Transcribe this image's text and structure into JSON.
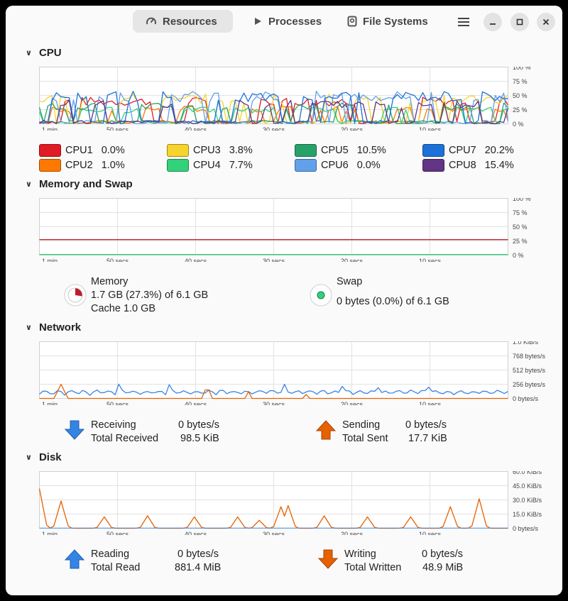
{
  "header": {
    "tabs": [
      {
        "label": "Resources",
        "icon": "gauge-icon",
        "active": true
      },
      {
        "label": "Processes",
        "icon": "play-icon",
        "active": false
      },
      {
        "label": "File Systems",
        "icon": "drive-icon",
        "active": false
      }
    ],
    "menu_icon": "hamburger-icon",
    "minimize_icon": "minimize-icon",
    "maximize_icon": "maximize-icon",
    "close_icon": "close-icon"
  },
  "time_labels": [
    "1 min",
    "50 secs",
    "40 secs",
    "30 secs",
    "20 secs",
    "10 secs"
  ],
  "cpu": {
    "title": "CPU",
    "y_ticks": [
      "100 %",
      "75 %",
      "50 %",
      "25 %",
      "0 %"
    ],
    "cores": [
      {
        "label": "CPU1",
        "value": "0.0%",
        "color": "#e01b24"
      },
      {
        "label": "CPU2",
        "value": "1.0%",
        "color": "#ff7800"
      },
      {
        "label": "CPU3",
        "value": "3.8%",
        "color": "#f6d32d"
      },
      {
        "label": "CPU4",
        "value": "7.7%",
        "color": "#33d17a"
      },
      {
        "label": "CPU5",
        "value": "10.5%",
        "color": "#26a269"
      },
      {
        "label": "CPU6",
        "value": "0.0%",
        "color": "#62a0ea"
      },
      {
        "label": "CPU7",
        "value": "20.2%",
        "color": "#1c71d8"
      },
      {
        "label": "CPU8",
        "value": "15.4%",
        "color": "#613583"
      }
    ]
  },
  "memory": {
    "title": "Memory and Swap",
    "y_ticks": [
      "100 %",
      "75 %",
      "50 %",
      "25 %",
      "0 %"
    ],
    "memory_label": "Memory",
    "memory_usage": "1.7 GB (27.3%) of 6.1 GB",
    "memory_cache": "Cache 1.0 GB",
    "memory_fraction": 0.273,
    "memory_color": "#c01c28",
    "swap_label": "Swap",
    "swap_usage": "0 bytes (0.0%) of 6.1 GB",
    "swap_fraction": 0.0,
    "swap_color": "#33d17a"
  },
  "network": {
    "title": "Network",
    "y_ticks": [
      "1.0 KiB/s",
      "768 bytes/s",
      "512 bytes/s",
      "256 bytes/s",
      "0 bytes/s"
    ],
    "receiving_label": "Receiving",
    "receiving_value": "0 bytes/s",
    "total_received_label": "Total Received",
    "total_received_value": "98.5 KiB",
    "sending_label": "Sending",
    "sending_value": "0 bytes/s",
    "total_sent_label": "Total Sent",
    "total_sent_value": "17.7 KiB",
    "receive_color": "#3584e4",
    "send_color": "#e66100"
  },
  "disk": {
    "title": "Disk",
    "y_ticks": [
      "60.0 KiB/s",
      "45.0 KiB/s",
      "30.0 KiB/s",
      "15.0 KiB/s",
      "0 bytes/s"
    ],
    "reading_label": "Reading",
    "reading_value": "0 bytes/s",
    "total_read_label": "Total Read",
    "total_read_value": "881.4 MiB",
    "writing_label": "Writing",
    "writing_value": "0 bytes/s",
    "total_written_label": "Total Written",
    "total_written_value": "48.9 MiB",
    "read_color": "#3584e4",
    "write_color": "#e66100"
  }
}
